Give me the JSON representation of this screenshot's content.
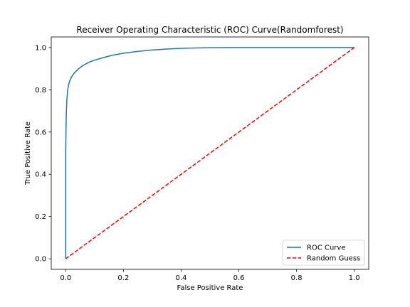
{
  "chart_data": {
    "type": "line",
    "title": "Receiver Operating Characteristic (ROC) Curve(Randomforest)",
    "xlabel": "False Positive Rate",
    "ylabel": "True Positive Rate",
    "xlim": [
      -0.05,
      1.05
    ],
    "ylim": [
      -0.05,
      1.05
    ],
    "xticks": [
      0.0,
      0.2,
      0.4,
      0.6,
      0.8,
      1.0
    ],
    "xtick_labels": [
      "0.0",
      "0.2",
      "0.4",
      "0.6",
      "0.8",
      "1.0"
    ],
    "yticks": [
      0.0,
      0.2,
      0.4,
      0.6,
      0.8,
      1.0
    ],
    "ytick_labels": [
      "0.0",
      "0.2",
      "0.4",
      "0.6",
      "0.8",
      "1.0"
    ],
    "grid": false,
    "legend_position": "lower-right",
    "series": [
      {
        "name": "ROC Curve",
        "color": "#1f77b4",
        "linestyle": "solid",
        "x": [
          0.0,
          0.0,
          0.002,
          0.004,
          0.007,
          0.012,
          0.02,
          0.03,
          0.045,
          0.06,
          0.08,
          0.1,
          0.13,
          0.16,
          0.2,
          0.25,
          0.3,
          0.35,
          0.4,
          0.45,
          0.5,
          0.6,
          0.8,
          1.0
        ],
        "y": [
          0.0,
          0.5,
          0.68,
          0.75,
          0.8,
          0.835,
          0.86,
          0.88,
          0.9,
          0.915,
          0.93,
          0.94,
          0.952,
          0.963,
          0.973,
          0.982,
          0.988,
          0.993,
          0.996,
          0.998,
          0.999,
          1.0,
          1.0,
          1.0
        ]
      },
      {
        "name": "Random Guess",
        "color": "#ff0000",
        "linestyle": "dashed",
        "x": [
          0.0,
          1.0
        ],
        "y": [
          0.0,
          1.0
        ]
      }
    ]
  }
}
